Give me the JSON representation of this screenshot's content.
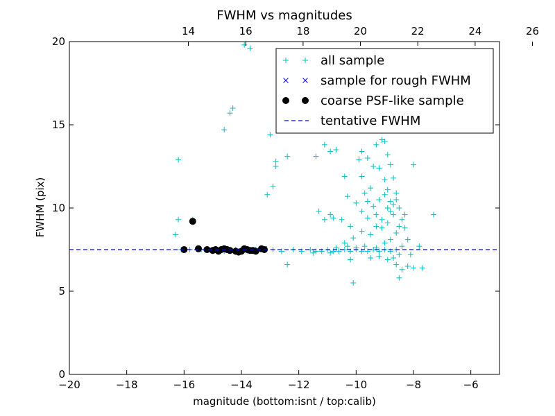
{
  "chart_data": {
    "type": "scatter",
    "title": "FWHM vs magnitudes",
    "xlabel": "magnitude (bottom:isnt / top:calib)",
    "ylabel": "FWHM (pix)",
    "xlim": [
      -20,
      -5
    ],
    "ylim": [
      0,
      20
    ],
    "x_ticks": [
      -20,
      -18,
      -16,
      -14,
      -12,
      -10,
      -8,
      -6
    ],
    "x_tick_labels": [
      "−20",
      "−18",
      "−16",
      "−14",
      "−12",
      "−10",
      "−8",
      "−6"
    ],
    "y_ticks": [
      0,
      5,
      10,
      15,
      20
    ],
    "y_tick_labels": [
      "0",
      "5",
      "10",
      "15",
      "20"
    ],
    "top_axis_offset": 29.85,
    "top_ticks": [
      14,
      16,
      18,
      20,
      22,
      24,
      26
    ],
    "top_tick_labels": [
      "14",
      "16",
      "18",
      "20",
      "22",
      "24",
      "26"
    ],
    "grid": false,
    "legend_position": "top-right",
    "series": [
      {
        "name": "all sample",
        "marker": "plus",
        "color": "#00bfbf",
        "points": [
          [
            -16.2,
            12.9
          ],
          [
            -16.2,
            9.3
          ],
          [
            -16.3,
            8.4
          ],
          [
            -15.7,
            9.3
          ],
          [
            -14.6,
            14.7
          ],
          [
            -14.4,
            15.7
          ],
          [
            -14.3,
            16.0
          ],
          [
            -13.9,
            19.8
          ],
          [
            -13.7,
            19.6
          ],
          [
            -13.1,
            10.8
          ],
          [
            -12.9,
            11.3
          ],
          [
            -12.8,
            12.8
          ],
          [
            -12.8,
            12.5
          ],
          [
            -13.0,
            14.4
          ],
          [
            -12.4,
            13.1
          ],
          [
            -11.4,
            13.1
          ],
          [
            -11.1,
            13.8
          ],
          [
            -10.9,
            13.4
          ],
          [
            -10.7,
            13.5
          ],
          [
            -10.4,
            11.9
          ],
          [
            -10.3,
            10.7
          ],
          [
            -10.5,
            9.3
          ],
          [
            -10.2,
            8.9
          ],
          [
            -10.9,
            9.6
          ],
          [
            -11.3,
            9.8
          ],
          [
            -11.1,
            9.3
          ],
          [
            -10.8,
            9.4
          ],
          [
            -12.4,
            6.6
          ],
          [
            -10.1,
            5.5
          ],
          [
            -9.8,
            13.4
          ],
          [
            -9.9,
            12.9
          ],
          [
            -9.6,
            13.0
          ],
          [
            -9.8,
            11.9
          ],
          [
            -9.4,
            12.5
          ],
          [
            -9.3,
            13.8
          ],
          [
            -9.1,
            14.1
          ],
          [
            -9.2,
            12.4
          ],
          [
            -8.9,
            13.2
          ],
          [
            -8.8,
            12.6
          ],
          [
            -9.0,
            11.7
          ],
          [
            -8.7,
            11.8
          ],
          [
            -8.9,
            11.1
          ],
          [
            -9.5,
            11.2
          ],
          [
            -9.7,
            10.9
          ],
          [
            -10.0,
            10.3
          ],
          [
            -9.8,
            9.8
          ],
          [
            -9.6,
            9.4
          ],
          [
            -9.4,
            10.1
          ],
          [
            -9.2,
            10.5
          ],
          [
            -9.0,
            10.8
          ],
          [
            -8.8,
            10.4
          ],
          [
            -8.6,
            10.9
          ],
          [
            -8.5,
            10.0
          ],
          [
            -8.7,
            9.6
          ],
          [
            -8.9,
            9.1
          ],
          [
            -9.1,
            8.8
          ],
          [
            -9.3,
            8.9
          ],
          [
            -8.4,
            9.3
          ],
          [
            -8.3,
            8.8
          ],
          [
            -8.6,
            8.5
          ],
          [
            -8.8,
            8.1
          ],
          [
            -9.0,
            7.9
          ],
          [
            -9.5,
            8.4
          ],
          [
            -9.8,
            8.6
          ],
          [
            -10.1,
            8.2
          ],
          [
            -10.4,
            7.9
          ],
          [
            -8.2,
            8.1
          ],
          [
            -8.4,
            7.7
          ],
          [
            -8.5,
            7.2
          ],
          [
            -8.7,
            7.0
          ],
          [
            -8.9,
            6.9
          ],
          [
            -8.6,
            6.6
          ],
          [
            -8.4,
            6.3
          ],
          [
            -8.5,
            5.8
          ],
          [
            -8.2,
            6.5
          ],
          [
            -8.0,
            6.4
          ],
          [
            -7.7,
            6.4
          ],
          [
            -7.3,
            9.6
          ],
          [
            -8.0,
            12.6
          ],
          [
            -7.8,
            7.7
          ],
          [
            -8.1,
            7.2
          ],
          [
            -9.2,
            7.1
          ],
          [
            -9.5,
            7.0
          ],
          [
            -10.2,
            6.9
          ],
          [
            -9.0,
            14.0
          ],
          [
            -8.9,
            10.0
          ],
          [
            -8.7,
            10.2
          ],
          [
            -8.8,
            9.8
          ],
          [
            -8.6,
            10.5
          ],
          [
            -9.3,
            9.6
          ],
          [
            -9.6,
            10.4
          ],
          [
            -9.1,
            9.3
          ],
          [
            -8.5,
            8.9
          ],
          [
            -8.3,
            9.6
          ],
          [
            -12.9,
            7.5
          ],
          [
            -12.6,
            7.4
          ],
          [
            -12.2,
            7.5
          ],
          [
            -11.9,
            7.4
          ],
          [
            -11.6,
            7.5
          ],
          [
            -11.4,
            7.4
          ],
          [
            -11.2,
            7.4
          ],
          [
            -11.0,
            7.5
          ],
          [
            -10.8,
            7.4
          ],
          [
            -10.6,
            7.4
          ],
          [
            -10.4,
            7.5
          ],
          [
            -10.2,
            7.4
          ],
          [
            -10.0,
            7.5
          ],
          [
            -9.8,
            7.4
          ],
          [
            -9.6,
            7.4
          ],
          [
            -9.4,
            7.5
          ],
          [
            -9.2,
            7.4
          ],
          [
            -9.0,
            7.5
          ],
          [
            -8.8,
            7.4
          ],
          [
            -8.6,
            7.5
          ],
          [
            -13.5,
            7.5
          ],
          [
            -13.8,
            7.4
          ],
          [
            -14.2,
            7.5
          ],
          [
            -14.6,
            7.4
          ],
          [
            -15.0,
            7.5
          ],
          [
            -15.4,
            7.5
          ],
          [
            -15.8,
            7.5
          ],
          [
            -16.1,
            7.5
          ],
          [
            -11.5,
            7.3
          ],
          [
            -10.9,
            7.3
          ],
          [
            -10.7,
            7.6
          ],
          [
            -10.3,
            7.7
          ],
          [
            -10.0,
            7.6
          ],
          [
            -9.7,
            7.7
          ],
          [
            -9.3,
            7.6
          ]
        ]
      },
      {
        "name": "sample for rough FWHM",
        "marker": "x",
        "color": "#0000ff",
        "points": [
          [
            -15.7,
            9.2
          ],
          [
            -16.0,
            7.5
          ],
          [
            -15.5,
            7.55
          ],
          [
            -15.2,
            7.5
          ],
          [
            -14.9,
            7.5
          ],
          [
            -14.6,
            7.5
          ],
          [
            -14.4,
            7.45
          ],
          [
            -14.1,
            7.4
          ],
          [
            -13.8,
            7.5
          ],
          [
            -13.6,
            7.45
          ],
          [
            -13.2,
            7.55
          ]
        ]
      },
      {
        "name": "coarse PSF-like sample",
        "marker": "circle",
        "color": "#000000",
        "points": [
          [
            -15.7,
            9.2
          ],
          [
            -16.0,
            7.5
          ],
          [
            -15.5,
            7.55
          ],
          [
            -15.2,
            7.5
          ],
          [
            -15.0,
            7.45
          ],
          [
            -14.9,
            7.5
          ],
          [
            -14.8,
            7.4
          ],
          [
            -14.7,
            7.5
          ],
          [
            -14.6,
            7.55
          ],
          [
            -14.5,
            7.5
          ],
          [
            -14.4,
            7.45
          ],
          [
            -14.2,
            7.4
          ],
          [
            -14.1,
            7.35
          ],
          [
            -14.0,
            7.4
          ],
          [
            -13.9,
            7.55
          ],
          [
            -13.8,
            7.5
          ],
          [
            -13.7,
            7.45
          ],
          [
            -13.6,
            7.45
          ],
          [
            -13.5,
            7.4
          ],
          [
            -13.3,
            7.55
          ],
          [
            -13.2,
            7.5
          ]
        ]
      },
      {
        "name": "tentative FWHM",
        "marker": "dashed-line",
        "color": "#0000ff",
        "y": 7.5
      }
    ]
  }
}
